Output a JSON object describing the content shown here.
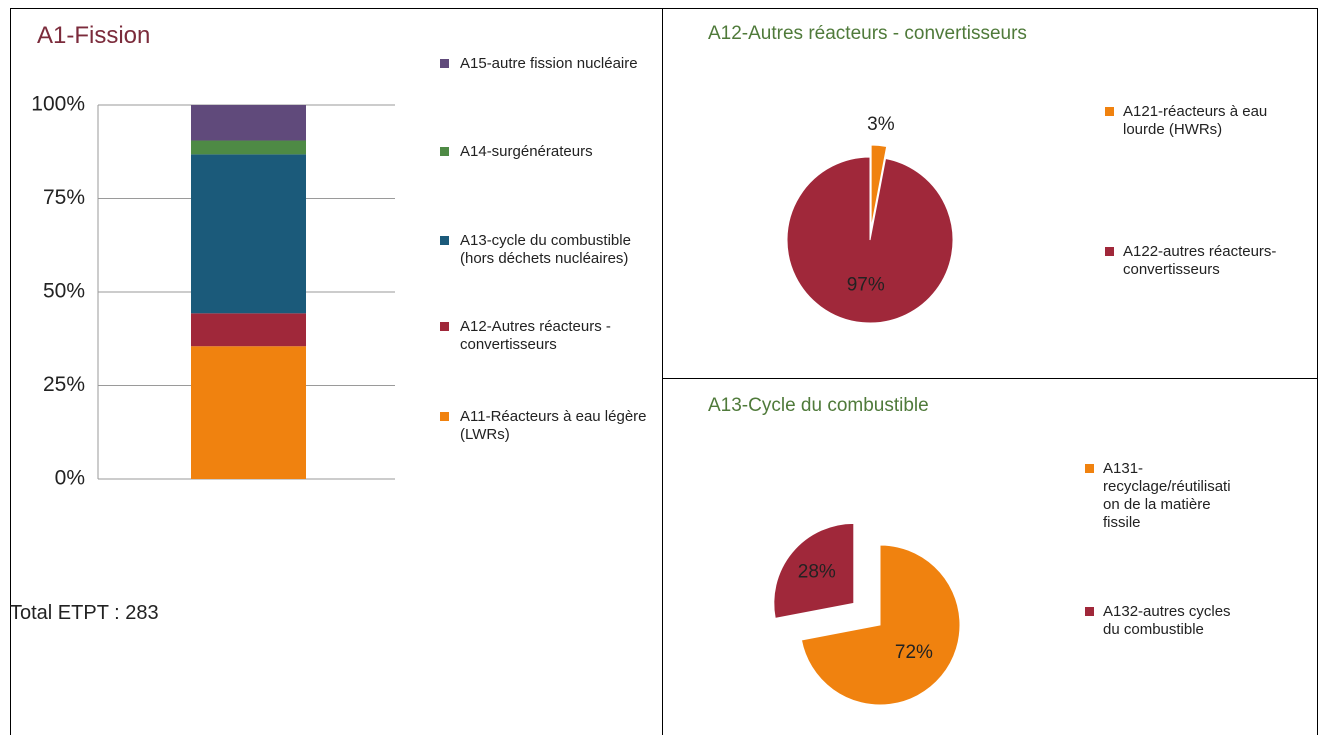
{
  "chart_data": [
    {
      "type": "stacked-bar",
      "title": "A1-Fission",
      "annotation": "Total ETPT : 283",
      "categories": [
        null
      ],
      "series": [
        {
          "name": "A11-Réacteurs à eau légère (LWRs)",
          "color": "#f0820f",
          "values": [
            35.5
          ]
        },
        {
          "name": "A12-Autres réacteurs - convertisseurs",
          "color": "#a0283a",
          "values": [
            8.8
          ]
        },
        {
          "name": "A13-cycle du combustible (hors déchets nucléaires)",
          "color": "#1b5a7a",
          "values": [
            42.5
          ]
        },
        {
          "name": "A14-surgénérateurs",
          "color": "#4e8a45",
          "values": [
            3.7
          ]
        },
        {
          "name": "A15-autre fission nucléaire",
          "color": "#604a7b",
          "values": [
            9.5
          ]
        }
      ],
      "ylim": [
        0,
        100
      ],
      "yticks": [
        {
          "value": 0,
          "label": "0%"
        },
        {
          "value": 25,
          "label": "25%"
        },
        {
          "value": 50,
          "label": "50%"
        },
        {
          "value": 75,
          "label": "75%"
        },
        {
          "value": 100,
          "label": "100%"
        }
      ],
      "grid": true,
      "legend": "right"
    },
    {
      "type": "pie",
      "title": "A12-Autres réacteurs - convertisseurs",
      "categories": [
        "A121-réacteurs à eau lourde (HWRs)",
        "A122-autres réacteurs-convertisseurs"
      ],
      "values": [
        3,
        97
      ],
      "value_labels": [
        "3%",
        "97%"
      ],
      "colors": [
        "#f0820f",
        "#a0283a"
      ],
      "legend": "right"
    },
    {
      "type": "pie",
      "title": "A13-Cycle du combustible",
      "categories": [
        "A131-recyclage/réutilisation de la matière fissile",
        "A132-autres cycles du combustible"
      ],
      "values": [
        72,
        28
      ],
      "value_labels": [
        "72%",
        "28%"
      ],
      "colors": [
        "#f0820f",
        "#a0283a"
      ],
      "legend": "right"
    }
  ]
}
